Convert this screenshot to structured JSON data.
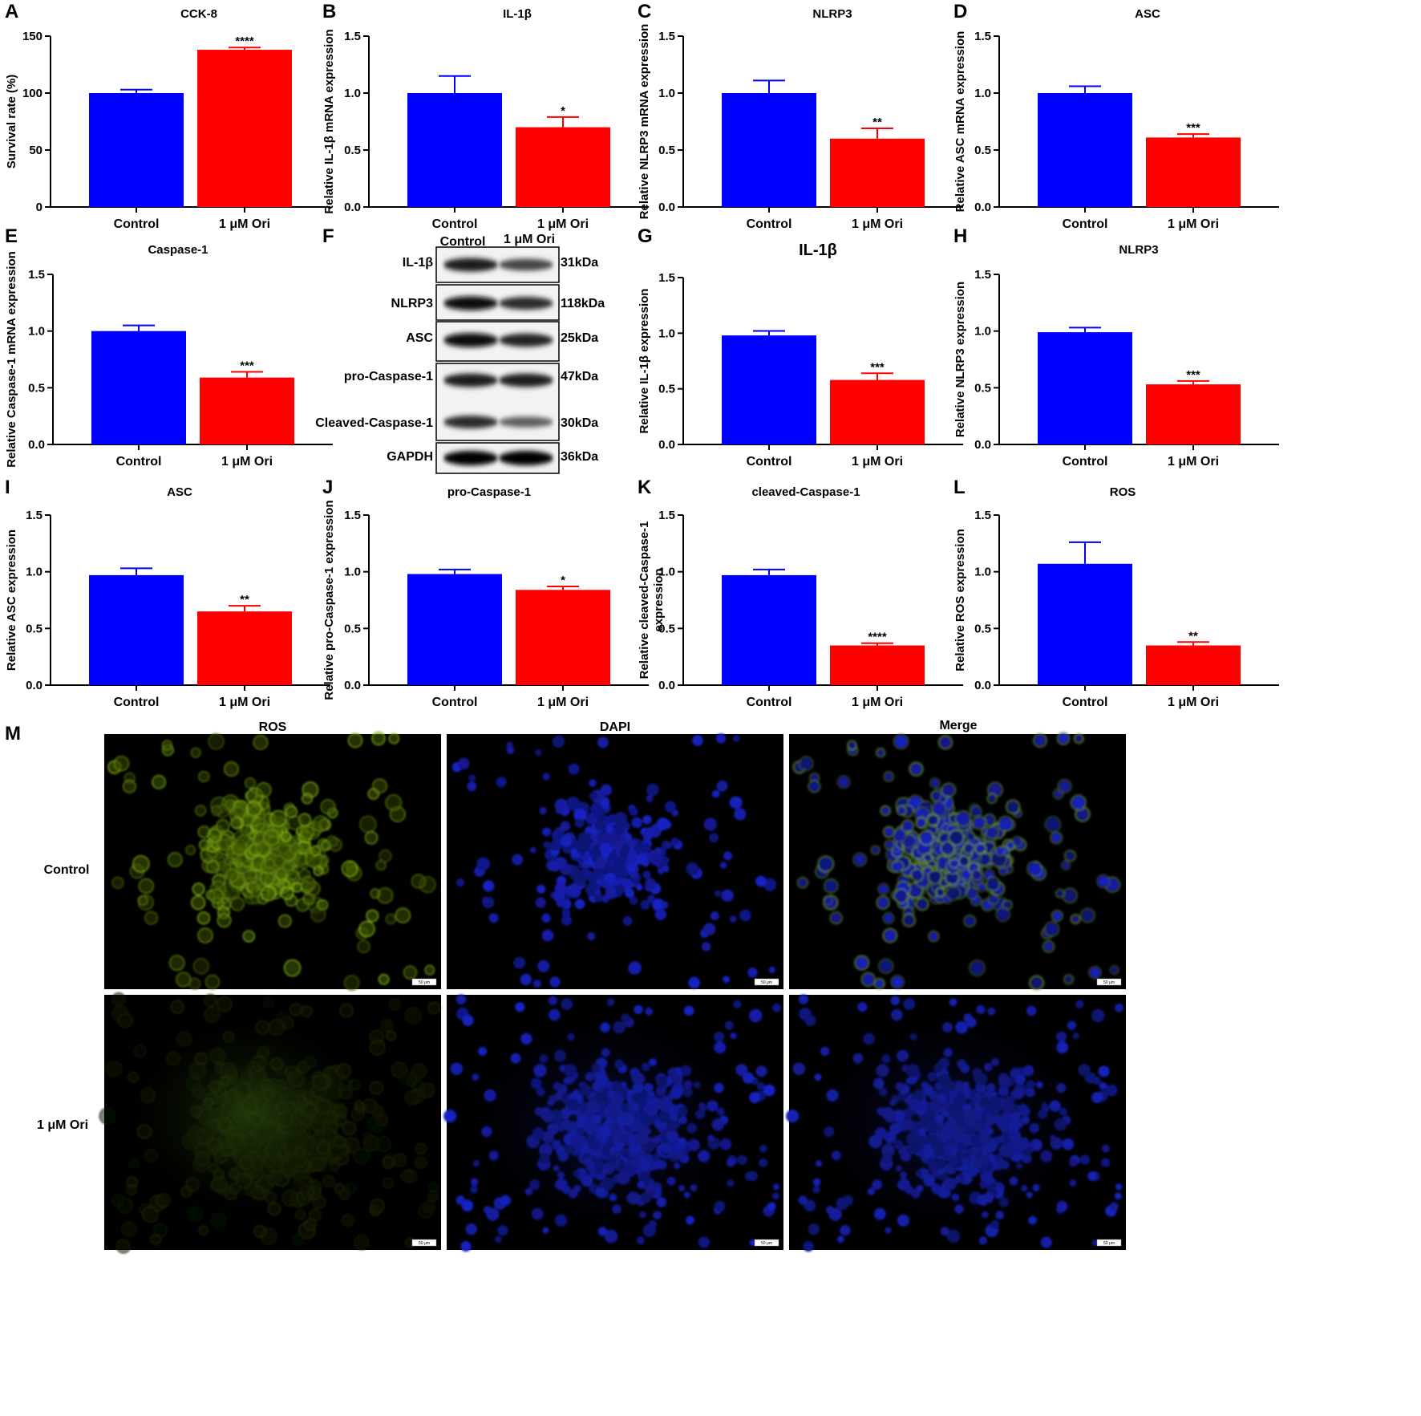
{
  "colors": {
    "control": "#0000ff",
    "treatment": "#ff0000",
    "axis": "#000000",
    "background": "#ffffff",
    "micro_bg": "#000000"
  },
  "chart_data": [
    {
      "panel": "A",
      "type": "bar",
      "title": "CCK-8",
      "categories": [
        "Control",
        "1 μM Ori"
      ],
      "values": [
        100,
        138
      ],
      "errors": [
        3,
        2
      ],
      "significance": "****",
      "ylabel": "Survival rate (%)",
      "ylim": [
        0,
        150
      ],
      "yticks": [
        0,
        50,
        100,
        150
      ],
      "ytick_labels": [
        "0",
        "50",
        "100",
        "150"
      ]
    },
    {
      "panel": "B",
      "type": "bar",
      "title": "IL-1β",
      "categories": [
        "Control",
        "1 μM Ori"
      ],
      "values": [
        1.0,
        0.7
      ],
      "errors": [
        0.15,
        0.09
      ],
      "significance": "*",
      "ylabel": "Relative IL-1β mRNA expression",
      "ylim": [
        0,
        1.5
      ],
      "yticks": [
        0,
        0.5,
        1.0,
        1.5
      ],
      "ytick_labels": [
        "0.0",
        "0.5",
        "1.0",
        "1.5"
      ]
    },
    {
      "panel": "C",
      "type": "bar",
      "title": "NLRP3",
      "categories": [
        "Control",
        "1 μM Ori"
      ],
      "values": [
        1.0,
        0.6
      ],
      "errors": [
        0.11,
        0.09
      ],
      "significance": "**",
      "ylabel": "Relative NLRP3 mRNA expression",
      "ylim": [
        0,
        1.5
      ],
      "yticks": [
        0,
        0.5,
        1.0,
        1.5
      ],
      "ytick_labels": [
        "0.0",
        "0.5",
        "1.0",
        "1.5"
      ]
    },
    {
      "panel": "D",
      "type": "bar",
      "title": "ASC",
      "categories": [
        "Control",
        "1 μM Ori"
      ],
      "values": [
        1.0,
        0.61
      ],
      "errors": [
        0.06,
        0.03
      ],
      "significance": "***",
      "ylabel": "Relative ASC mRNA expression",
      "ylim": [
        0,
        1.5
      ],
      "yticks": [
        0,
        0.5,
        1.0,
        1.5
      ],
      "ytick_labels": [
        "0.0",
        "0.5",
        "1.0",
        "1.5"
      ]
    },
    {
      "panel": "E",
      "type": "bar",
      "title": "Caspase-1",
      "categories": [
        "Control",
        "1 μM Ori"
      ],
      "values": [
        1.0,
        0.59
      ],
      "errors": [
        0.05,
        0.05
      ],
      "significance": "***",
      "ylabel": "Relative Caspase-1 mRNA expression",
      "ylim": [
        0,
        1.5
      ],
      "yticks": [
        0,
        0.5,
        1.0,
        1.5
      ],
      "ytick_labels": [
        "0.0",
        "0.5",
        "1.0",
        "1.5"
      ]
    },
    {
      "panel": "G",
      "type": "bar",
      "title": "IL-1β",
      "categories": [
        "Control",
        "1 μM Ori"
      ],
      "values": [
        0.98,
        0.58
      ],
      "errors": [
        0.04,
        0.06
      ],
      "significance": "***",
      "ylabel": "Relative IL-1β expression",
      "ylim": [
        0,
        1.5
      ],
      "yticks": [
        0,
        0.5,
        1.0,
        1.5
      ],
      "ytick_labels": [
        "0.0",
        "0.5",
        "1.0",
        "1.5"
      ]
    },
    {
      "panel": "H",
      "type": "bar",
      "title": "NLRP3",
      "categories": [
        "Control",
        "1 μM Ori"
      ],
      "values": [
        0.99,
        0.53
      ],
      "errors": [
        0.04,
        0.03
      ],
      "significance": "***",
      "ylabel": "Relative NLRP3 expression",
      "ylim": [
        0,
        1.5
      ],
      "yticks": [
        0,
        0.5,
        1.0,
        1.5
      ],
      "ytick_labels": [
        "0.0",
        "0.5",
        "1.0",
        "1.5"
      ]
    },
    {
      "panel": "I",
      "type": "bar",
      "title": "ASC",
      "categories": [
        "Control",
        "1 μM Ori"
      ],
      "values": [
        0.97,
        0.65
      ],
      "errors": [
        0.06,
        0.05
      ],
      "significance": "**",
      "ylabel": "Relative ASC expression",
      "ylim": [
        0,
        1.5
      ],
      "yticks": [
        0,
        0.5,
        1.0,
        1.5
      ],
      "ytick_labels": [
        "0.0",
        "0.5",
        "1.0",
        "1.5"
      ]
    },
    {
      "panel": "J",
      "type": "bar",
      "title": "pro-Caspase-1",
      "categories": [
        "Control",
        "1 μM Ori"
      ],
      "values": [
        0.98,
        0.84
      ],
      "errors": [
        0.04,
        0.03
      ],
      "significance": "*",
      "ylabel": "Relative pro-Caspase-1 expression",
      "ylim": [
        0,
        1.5
      ],
      "yticks": [
        0,
        0.5,
        1.0,
        1.5
      ],
      "ytick_labels": [
        "0.0",
        "0.5",
        "1.0",
        "1.5"
      ]
    },
    {
      "panel": "K",
      "type": "bar",
      "title": "cleaved-Caspase-1",
      "categories": [
        "Control",
        "1 μM Ori"
      ],
      "values": [
        0.97,
        0.35
      ],
      "errors": [
        0.05,
        0.02
      ],
      "significance": "****",
      "ylabel": [
        "Relative cleaved-Caspase-1",
        "expression"
      ],
      "ylim": [
        0,
        1.5
      ],
      "yticks": [
        0,
        0.5,
        1.0,
        1.5
      ],
      "ytick_labels": [
        "0.0",
        "0.5",
        "1.0",
        "1.5"
      ]
    },
    {
      "panel": "L",
      "type": "bar",
      "title": "ROS",
      "categories": [
        "Control",
        "1 μM Ori"
      ],
      "values": [
        1.07,
        0.35
      ],
      "errors": [
        0.19,
        0.03
      ],
      "significance": "**",
      "ylabel": "Relative ROS expression",
      "ylim": [
        0,
        1.5
      ],
      "yticks": [
        0,
        0.5,
        1.0,
        1.5
      ],
      "ytick_labels": [
        "0.0",
        "0.5",
        "1.0",
        "1.5"
      ]
    }
  ],
  "western_blot": {
    "panel": "F",
    "columns": [
      "Control",
      "1 μM Ori"
    ],
    "rows": [
      {
        "protein": "IL-1β",
        "kda": "31kDa",
        "intensity": [
          0.85,
          0.6
        ]
      },
      {
        "protein": "NLRP3",
        "kda": "118kDa",
        "intensity": [
          0.9,
          0.75
        ]
      },
      {
        "protein": "ASC",
        "kda": "25kDa",
        "intensity": [
          0.95,
          0.8
        ]
      },
      {
        "protein": "pro-Caspase-1",
        "kda": "47kDa",
        "intensity": [
          0.85,
          0.85
        ]
      },
      {
        "protein": "Cleaved-Caspase-1",
        "kda": "30kDa",
        "intensity": [
          0.75,
          0.45
        ]
      },
      {
        "protein": "GAPDH",
        "kda": "36kDa",
        "intensity": [
          1.0,
          1.0
        ]
      }
    ]
  },
  "microscopy": {
    "panel": "M",
    "columns": [
      "ROS",
      "DAPI",
      "Merge"
    ],
    "rows": [
      "Control",
      "1 μM Ori"
    ],
    "scale_bar": "50 μm"
  }
}
